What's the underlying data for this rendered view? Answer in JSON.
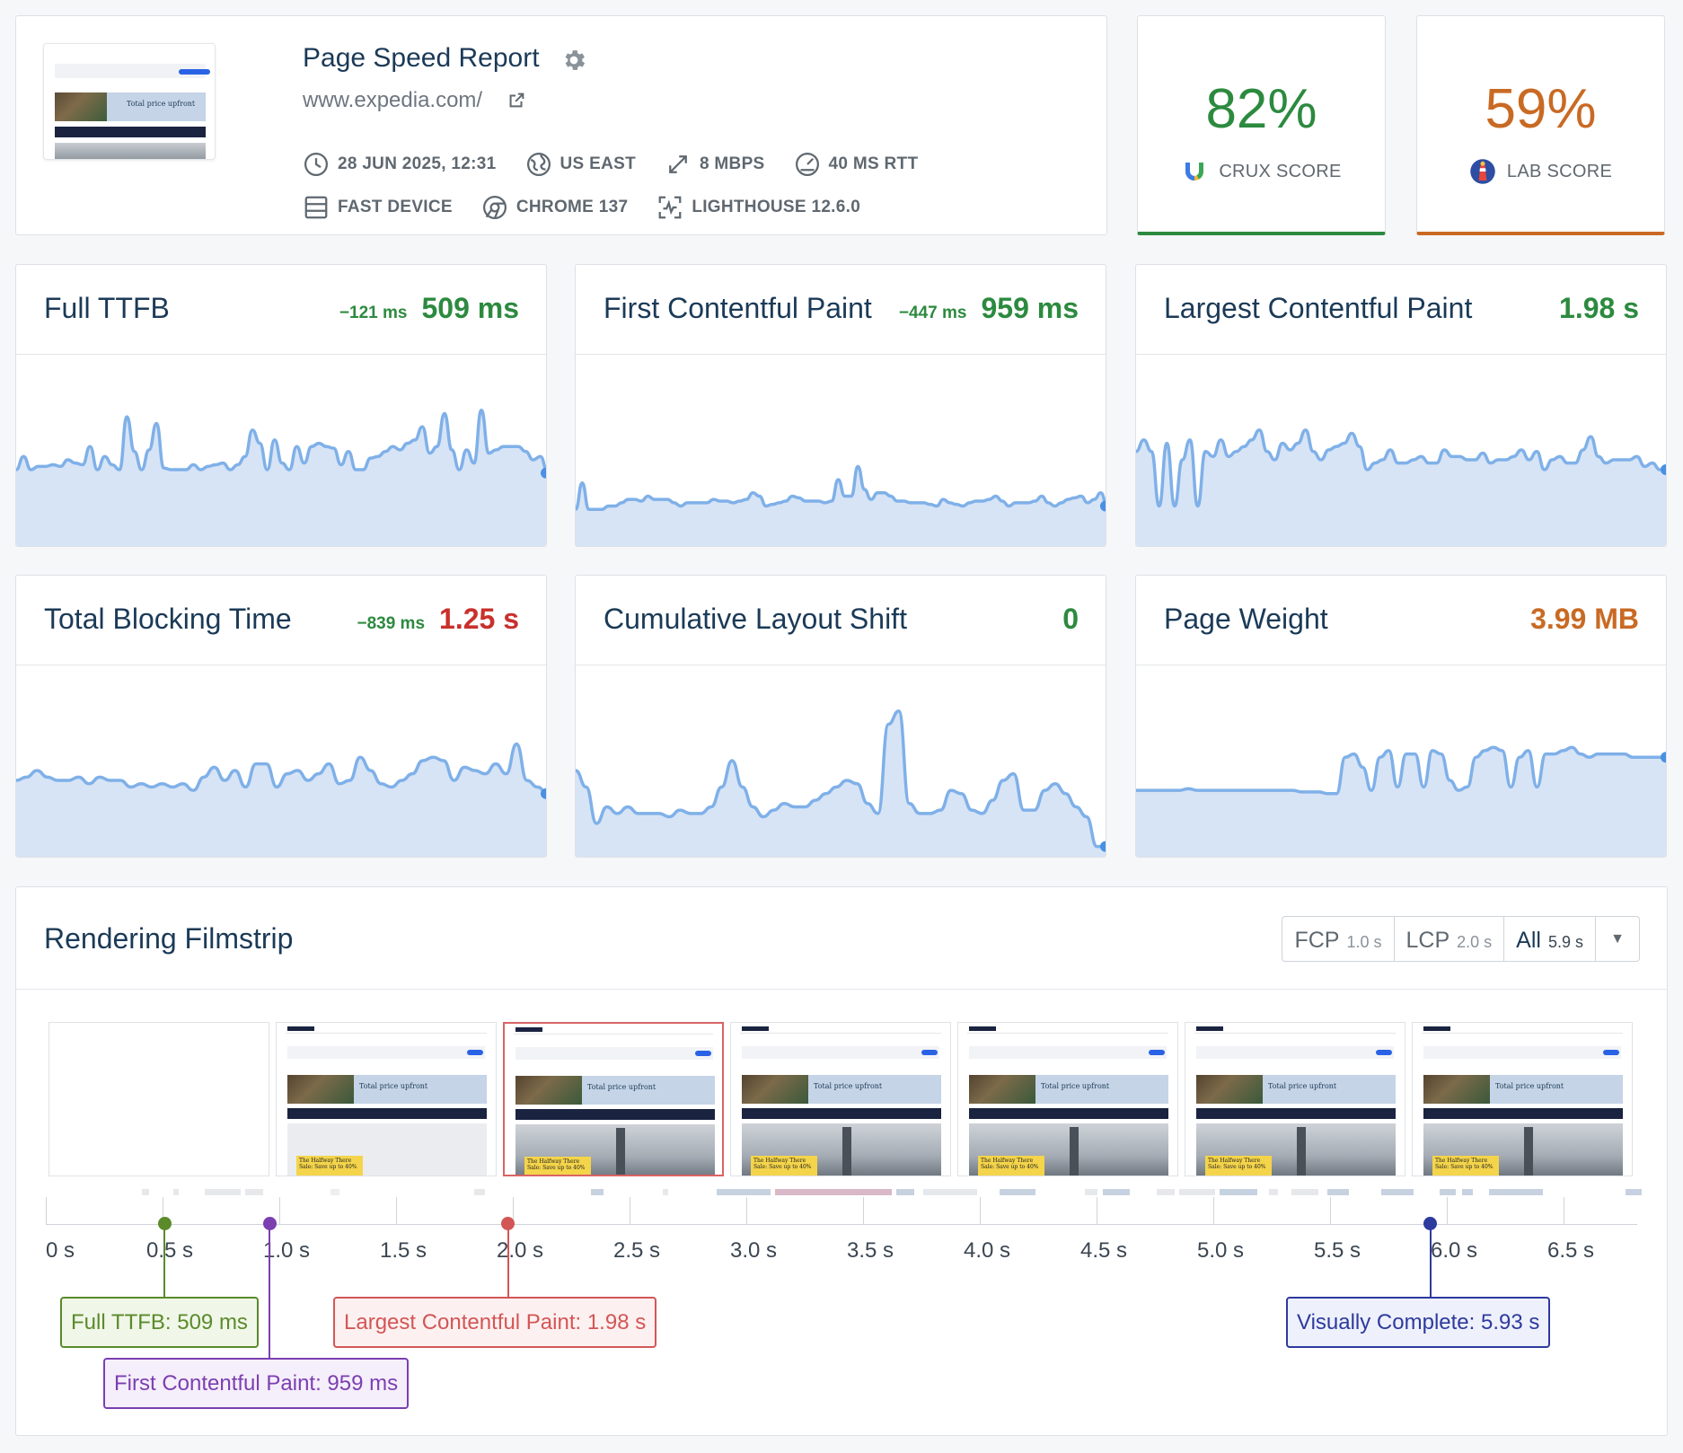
{
  "header": {
    "title": "Page Speed Report",
    "url": "www.expedia.com/",
    "thumb_text": "Total price upfront",
    "meta_row_1": [
      {
        "icon": "clock-icon",
        "text": "28 JUN 2025, 12:31"
      },
      {
        "icon": "globe-icon",
        "text": "US EAST"
      },
      {
        "icon": "bandwidth-icon",
        "text": "8 MBPS"
      },
      {
        "icon": "gauge-icon",
        "text": "40 MS RTT"
      }
    ],
    "meta_row_2": [
      {
        "icon": "device-icon",
        "text": "FAST DEVICE"
      },
      {
        "icon": "chrome-icon",
        "text": "CHROME 137"
      },
      {
        "icon": "lighthouse-icon",
        "text": "LIGHTHOUSE 12.6.0"
      }
    ]
  },
  "scores": {
    "crux": {
      "value": "82%",
      "label": "CRUX SCORE",
      "color": "#2c8a3f"
    },
    "lab": {
      "value": "59%",
      "label": "LAB SCORE",
      "color": "#c96a24"
    }
  },
  "metrics": [
    {
      "name": "Full TTFB",
      "delta": "−121 ms",
      "value": "509 ms",
      "status": "green",
      "trend": [
        44,
        52,
        44,
        46,
        46,
        47,
        46,
        50,
        48,
        47,
        58,
        44,
        52,
        47,
        44,
        76,
        55,
        44,
        56,
        72,
        45,
        44,
        44,
        44,
        47,
        44,
        46,
        47,
        48,
        44,
        47,
        52,
        68,
        60,
        44,
        62,
        48,
        44,
        58,
        48,
        58,
        60,
        58,
        57,
        47,
        55,
        44,
        44,
        51,
        52,
        55,
        58,
        56,
        60,
        62,
        70,
        54,
        58,
        78,
        56,
        44,
        56,
        48,
        80,
        54,
        56,
        58,
        58,
        58,
        55,
        50,
        52,
        42
      ]
    },
    {
      "name": "First Contentful Paint",
      "delta": "−447 ms",
      "value": "959 ms",
      "status": "green",
      "trend": [
        20,
        36,
        20,
        20,
        20,
        22,
        22,
        24,
        26,
        26,
        25,
        28,
        26,
        26,
        26,
        24,
        22,
        24,
        24,
        24,
        24,
        26,
        25,
        25,
        24,
        25,
        26,
        30,
        28,
        22,
        23,
        24,
        25,
        28,
        27,
        25,
        25,
        25,
        24,
        25,
        38,
        28,
        28,
        46,
        32,
        26,
        30,
        30,
        28,
        25,
        25,
        24,
        24,
        24,
        23,
        22,
        26,
        24,
        23,
        22,
        24,
        25,
        25,
        26,
        28,
        25,
        22,
        24,
        24,
        24,
        25,
        28,
        24,
        22,
        24,
        26,
        27,
        28,
        24,
        26,
        30,
        22
      ]
    },
    {
      "name": "Largest Contentful Paint",
      "delta": "",
      "value": "1.98 s",
      "status": "green",
      "trend": [
        55,
        62,
        55,
        22,
        60,
        22,
        50,
        62,
        22,
        55,
        52,
        62,
        52,
        55,
        58,
        62,
        68,
        55,
        50,
        60,
        56,
        60,
        68,
        55,
        50,
        56,
        58,
        60,
        66,
        58,
        44,
        48,
        50,
        56,
        48,
        48,
        50,
        52,
        48,
        48,
        56,
        52,
        52,
        50,
        50,
        54,
        48,
        50,
        50,
        52,
        56,
        50,
        55,
        44,
        50,
        52,
        48,
        48,
        56,
        64,
        52,
        48,
        50,
        50,
        50,
        52,
        46,
        48,
        44,
        44
      ]
    },
    {
      "name": "Total Blocking Time",
      "delta": "−839 ms",
      "value": "1.25 s",
      "status": "red",
      "trend": [
        44,
        46,
        50,
        46,
        44,
        44,
        46,
        42,
        46,
        44,
        44,
        40,
        42,
        40,
        42,
        40,
        42,
        38,
        46,
        52,
        44,
        50,
        40,
        54,
        54,
        40,
        48,
        50,
        44,
        48,
        54,
        42,
        44,
        58,
        50,
        42,
        40,
        44,
        48,
        56,
        58,
        56,
        44,
        52,
        50,
        48,
        54,
        48,
        66,
        44,
        40,
        36
      ]
    },
    {
      "name": "Cumulative Layout Shift",
      "delta": "",
      "value": "0",
      "status": "green",
      "trend": [
        50,
        40,
        18,
        28,
        24,
        28,
        24,
        24,
        24,
        22,
        26,
        24,
        24,
        28,
        40,
        56,
        40,
        28,
        22,
        26,
        30,
        28,
        28,
        32,
        36,
        40,
        44,
        42,
        30,
        24,
        78,
        86,
        30,
        24,
        24,
        26,
        38,
        36,
        26,
        24,
        32,
        44,
        48,
        26,
        26,
        38,
        42,
        36,
        28,
        22,
        4,
        4
      ]
    },
    {
      "name": "Page Weight",
      "delta": "",
      "value": "3.99 MB",
      "status": "orange",
      "trend": [
        38,
        38,
        38,
        38,
        38,
        38,
        39,
        38,
        38,
        38,
        38,
        38,
        38,
        38,
        38,
        38,
        38,
        38,
        38,
        37,
        37,
        37,
        36,
        36,
        58,
        60,
        52,
        38,
        58,
        62,
        40,
        60,
        60,
        40,
        62,
        60,
        44,
        38,
        40,
        58,
        62,
        64,
        62,
        40,
        58,
        62,
        40,
        60,
        60,
        62,
        64,
        60,
        58,
        60,
        60,
        60,
        60,
        58,
        58,
        58,
        58,
        58
      ]
    }
  ],
  "filmstrip": {
    "title": "Rendering Filmstrip",
    "options": [
      {
        "label": "FCP",
        "sub": "1.0 s"
      },
      {
        "label": "LCP",
        "sub": "2.0 s"
      },
      {
        "label": "All",
        "sub": "5.9 s"
      }
    ],
    "dropdown_icon": "caret-down-icon",
    "frame_caption": "Total price upfront",
    "promo": "The Halfway There Sale: Save up to 40%",
    "ticks": [
      "0 s",
      "0.5 s",
      "1.0 s",
      "1.5 s",
      "2.0 s",
      "2.5 s",
      "3.0 s",
      "3.5 s",
      "4.0 s",
      "4.5 s",
      "5.0 s",
      "5.5 s",
      "6.0 s",
      "6.5 s"
    ],
    "tick_values": [
      0,
      0.5,
      1.0,
      1.5,
      2.0,
      2.5,
      3.0,
      3.5,
      4.0,
      4.5,
      5.0,
      5.5,
      6.0,
      6.5
    ],
    "markers": [
      {
        "label": "Full TTFB: 509 ms",
        "time": 0.509,
        "color": "#5a8a2a",
        "bg": "#f0f6e8",
        "row": 0
      },
      {
        "label": "First Contentful Paint: 959 ms",
        "time": 0.959,
        "color": "#7b3fb0",
        "bg": "#f5eefb",
        "row": 1
      },
      {
        "label": "Largest Contentful Paint: 1.98 s",
        "time": 1.98,
        "color": "#d35656",
        "bg": "#fdf0f0",
        "row": 0
      },
      {
        "label": "Visually Complete: 5.93 s",
        "time": 5.93,
        "color": "#2d3a9e",
        "bg": "#eef0fb",
        "row": 0
      }
    ]
  }
}
